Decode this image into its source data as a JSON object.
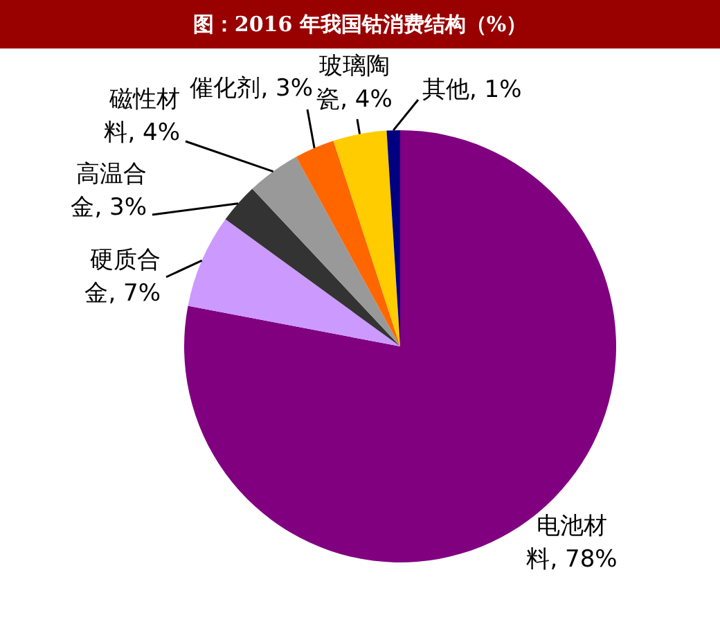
{
  "chart_data": {
    "type": "pie",
    "title": "图：2016 年我国钴消费结构（%）",
    "categories": [
      "电池材料",
      "硬质合金",
      "高温合金",
      "磁性材料",
      "催化剂",
      "玻璃陶瓷",
      "其他"
    ],
    "values": [
      78,
      7,
      3,
      4,
      3,
      4,
      1
    ],
    "colors": [
      "#800080",
      "#cc99ff",
      "#333333",
      "#999999",
      "#ff6600",
      "#ffcc00",
      "#000080"
    ],
    "value_labels": [
      "78%",
      "7%",
      "3%",
      "4%",
      "3%",
      "4%",
      "1%"
    ]
  }
}
